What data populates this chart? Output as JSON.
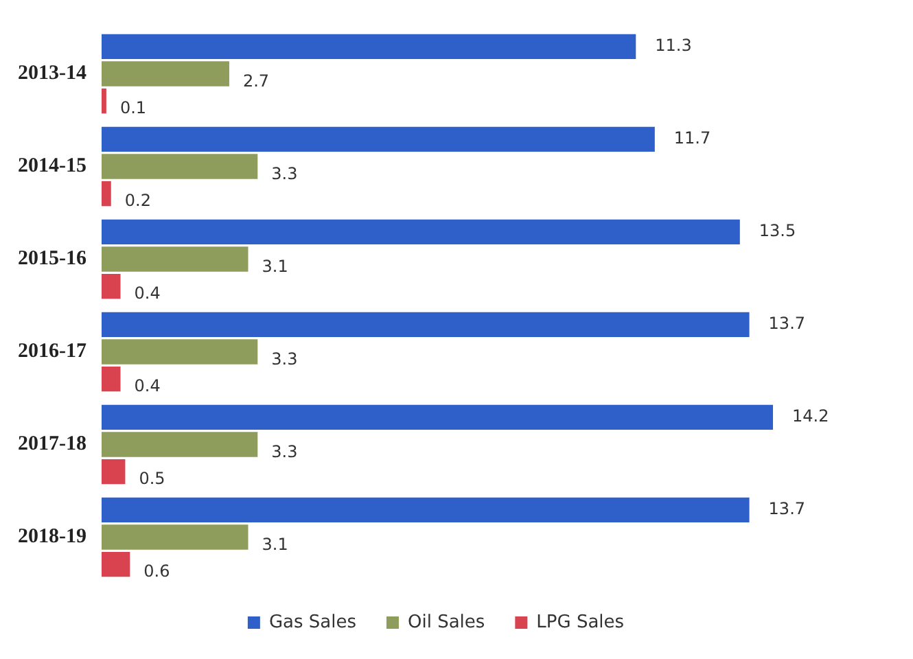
{
  "chart_data": {
    "type": "bar",
    "orientation": "horizontal",
    "categories": [
      "2013-14",
      "2014-15",
      "2015-16",
      "2016-17",
      "2017-18",
      "2018-19"
    ],
    "series": [
      {
        "name": "Gas Sales",
        "color": "#2f5fc9",
        "values": [
          11.3,
          11.7,
          13.5,
          13.7,
          14.2,
          13.7
        ]
      },
      {
        "name": "Oil Sales",
        "color": "#8e9d5b",
        "values": [
          2.7,
          3.3,
          3.1,
          3.3,
          3.3,
          3.1
        ]
      },
      {
        "name": "LPG Sales",
        "color": "#d8434f",
        "values": [
          0.1,
          0.2,
          0.4,
          0.4,
          0.5,
          0.6
        ]
      }
    ],
    "data_labels": true,
    "legend": "bottom",
    "tick_labels": "y"
  }
}
